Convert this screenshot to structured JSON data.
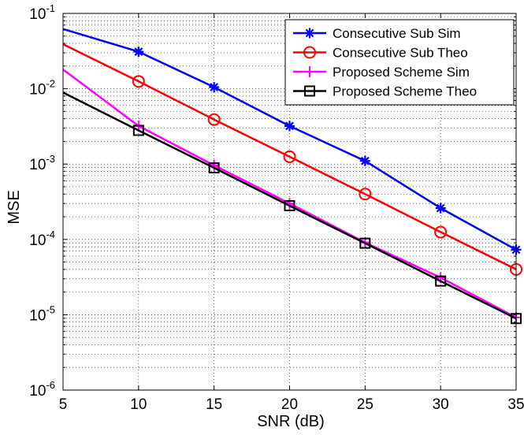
{
  "chart_data": {
    "type": "line",
    "title": "",
    "xlabel": "SNR (dB)",
    "ylabel": "MSE",
    "xlim": [
      5,
      35
    ],
    "ylim": [
      1e-06,
      0.1
    ],
    "yscale": "log",
    "grid": "major and minor, dotted",
    "legend_position": "top-right",
    "x_ticks": [
      5,
      10,
      15,
      20,
      25,
      30,
      35
    ],
    "y_ticks": [
      {
        "base": "10",
        "exp": "-6",
        "value": 1e-06
      },
      {
        "base": "10",
        "exp": "-5",
        "value": 1e-05
      },
      {
        "base": "10",
        "exp": "-4",
        "value": 0.0001
      },
      {
        "base": "10",
        "exp": "-3",
        "value": 0.001
      },
      {
        "base": "10",
        "exp": "-2",
        "value": 0.01
      },
      {
        "base": "10",
        "exp": "-1",
        "value": 0.1
      }
    ],
    "series": [
      {
        "name": "Consecutive Sub Sim",
        "color": "#0000ff",
        "marker": "asterisk",
        "x": [
          5,
          10,
          15,
          20,
          25,
          30,
          35
        ],
        "y": [
          0.062,
          0.031,
          0.0105,
          0.0032,
          0.0011,
          0.00026,
          7.3e-05
        ]
      },
      {
        "name": "Consecutive Sub Theo",
        "color": "#ff0000",
        "marker": "circle",
        "x": [
          5,
          10,
          15,
          20,
          25,
          30,
          35
        ],
        "y": [
          0.039,
          0.0125,
          0.0039,
          0.00125,
          0.0004,
          0.000125,
          4e-05
        ]
      },
      {
        "name": "Proposed Scheme Sim",
        "color": "#ff00ff",
        "marker": "plus",
        "x": [
          5,
          10,
          15,
          20,
          25,
          30,
          35
        ],
        "y": [
          0.018,
          0.0032,
          0.00096,
          0.0003,
          9.1e-05,
          3.1e-05,
          9.2e-06
        ]
      },
      {
        "name": "Proposed Scheme Theo",
        "color": "#000000",
        "marker": "square",
        "x": [
          5,
          10,
          15,
          20,
          25,
          30,
          35
        ],
        "y": [
          0.0089,
          0.0028,
          0.00089,
          0.00028,
          8.9e-05,
          2.8e-05,
          8.9e-06
        ]
      }
    ]
  }
}
